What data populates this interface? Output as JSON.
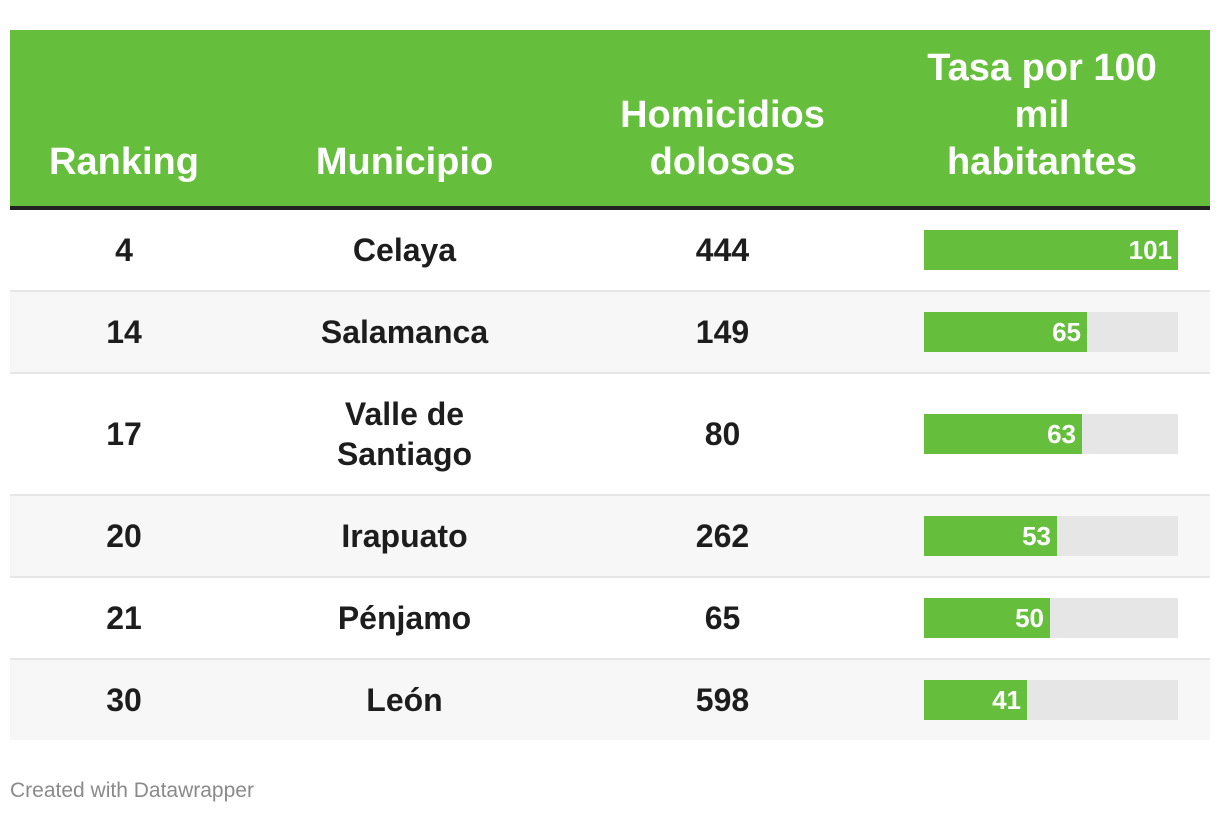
{
  "chart_data": {
    "type": "table",
    "columns": [
      "Ranking",
      "Municipio",
      "Homicidios dolosos",
      "Tasa por 100 mil habitantes"
    ],
    "header_lines": {
      "col1": [
        "Ranking"
      ],
      "col2": [
        "Municipio"
      ],
      "col3": [
        "Homicidios",
        "dolosos"
      ],
      "col4": [
        "Tasa por 100",
        "mil",
        "habitantes"
      ]
    },
    "rows": [
      {
        "ranking": "4",
        "municipio": [
          "Celaya"
        ],
        "homicidios": "444",
        "tasa": 101
      },
      {
        "ranking": "14",
        "municipio": [
          "Salamanca"
        ],
        "homicidios": "149",
        "tasa": 65
      },
      {
        "ranking": "17",
        "municipio": [
          "Valle de",
          "Santiago"
        ],
        "homicidios": "80",
        "tasa": 63
      },
      {
        "ranking": "20",
        "municipio": [
          "Irapuato"
        ],
        "homicidios": "262",
        "tasa": 53
      },
      {
        "ranking": "21",
        "municipio": [
          "Pénjamo"
        ],
        "homicidios": "65",
        "tasa": 50
      },
      {
        "ranking": "30",
        "municipio": [
          "León"
        ],
        "homicidios": "598",
        "tasa": 41
      }
    ],
    "bar_max": 101,
    "colors": {
      "header": "#66bf3c",
      "bar": "#66bf3c",
      "track": "#e6e6e6",
      "text": "#1d1d1d"
    }
  },
  "footer": {
    "credit": "Created with Datawrapper"
  }
}
